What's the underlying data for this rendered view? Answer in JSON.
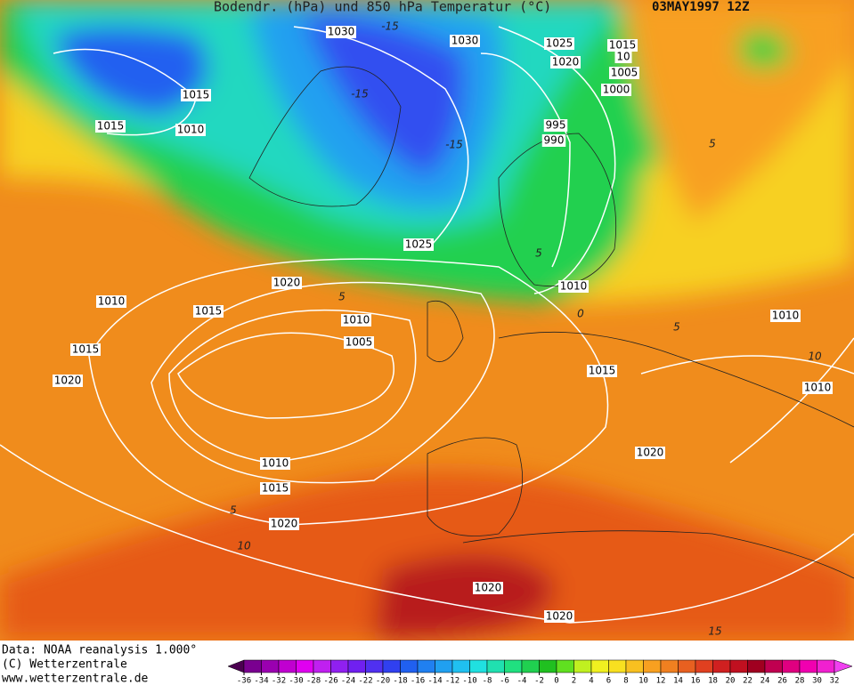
{
  "header": {
    "title": "Bodendr. (hPa) und 850 hPa Temperatur (°C)",
    "date": "03MAY1997 12Z"
  },
  "isobar_labels": [
    "1030",
    "1030",
    "1025",
    "1015",
    "1020",
    "1005",
    "1000",
    "1015",
    "1015",
    "1010",
    "995",
    "990",
    "1025",
    "1020",
    "1010",
    "1015",
    "1010",
    "1010",
    "1005",
    "1015",
    "1020",
    "1015",
    "1010",
    "1010",
    "1010",
    "1015",
    "1020",
    "1020",
    "1020",
    "1020",
    "10"
  ],
  "isotherm_labels": [
    "-15",
    "-15",
    "-15",
    "5",
    "5",
    "5",
    "5",
    "5",
    "0",
    "10",
    "10",
    "15"
  ],
  "footer": {
    "data": "Data: NOAA reanalysis 1.000°",
    "copyright": "(C) Wetterzentrale",
    "url": "www.wetterzentrale.de"
  },
  "legend": {
    "ticks": [
      -36,
      -34,
      -32,
      -30,
      -28,
      -26,
      -24,
      -22,
      -20,
      -18,
      -16,
      -14,
      -12,
      -10,
      -8,
      -6,
      -4,
      -2,
      0,
      2,
      4,
      6,
      8,
      10,
      12,
      14,
      16,
      18,
      20,
      22,
      24,
      26,
      28,
      30,
      32
    ],
    "colors": [
      "#4b0050",
      "#7a0090",
      "#9a00b0",
      "#c000d0",
      "#e000f0",
      "#c020f0",
      "#9020f0",
      "#7020f0",
      "#5030f0",
      "#3040f0",
      "#2060f0",
      "#2080f0",
      "#20a0f0",
      "#20c0f0",
      "#20e0e0",
      "#20e0b0",
      "#20e080",
      "#20d050",
      "#20c020",
      "#60e020",
      "#c0f020",
      "#f0f020",
      "#f8e020",
      "#f8c020",
      "#f8a020",
      "#f08020",
      "#e86020",
      "#e04020",
      "#d02020",
      "#c01020",
      "#a00020",
      "#c00050",
      "#e00080",
      "#f000b0",
      "#f020d0",
      "#f040f0"
    ]
  }
}
